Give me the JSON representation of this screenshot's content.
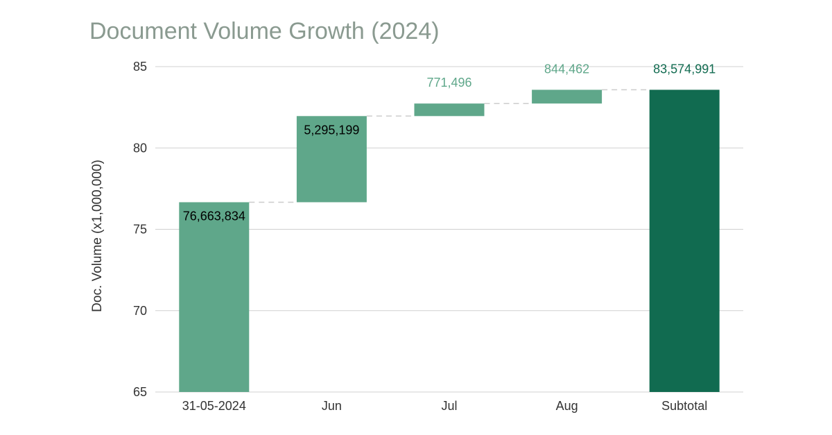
{
  "chart_data": {
    "type": "bar",
    "subtype": "waterfall",
    "title": "Document Volume Growth (2024)",
    "ylabel": "Doc. Volume (x1,000,000)",
    "xlabel": "",
    "ylim": [
      65,
      85
    ],
    "yticks": [
      65,
      70,
      75,
      80,
      85
    ],
    "grid": true,
    "categories": [
      "31-05-2024",
      "Jun",
      "Jul",
      "Aug",
      "Subtotal"
    ],
    "bars": [
      {
        "category": "31-05-2024",
        "kind": "start",
        "start": 65,
        "end": 76.663834,
        "label": "76,663,834"
      },
      {
        "category": "Jun",
        "kind": "increase",
        "start": 76.663834,
        "end": 81.959033,
        "label": "5,295,199"
      },
      {
        "category": "Jul",
        "kind": "increase",
        "start": 81.959033,
        "end": 82.730529,
        "label": "771,496"
      },
      {
        "category": "Aug",
        "kind": "increase",
        "start": 82.730529,
        "end": 83.574991,
        "label": "844,462"
      },
      {
        "category": "Subtotal",
        "kind": "total",
        "start": 65,
        "end": 83.574991,
        "label": "83,574,991"
      }
    ],
    "colors": {
      "increase": "#5fa78a",
      "total": "#116b50",
      "connector": "#cccccc",
      "grid": "#d0d0d0",
      "label_light": "#5fa78a",
      "label_dark": "#116b50",
      "label_inside": "#000000",
      "title": "#8a9a90"
    }
  }
}
